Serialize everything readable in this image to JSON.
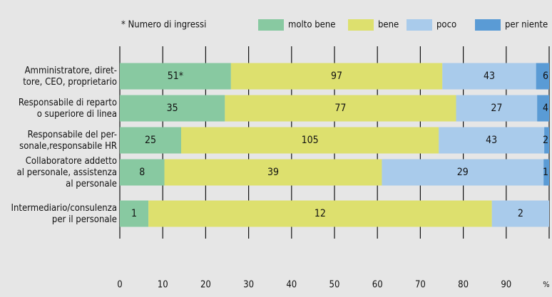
{
  "chart_data": {
    "type": "bar100h",
    "note": "* Numero di ingressi",
    "categories": [
      "Amministratore, diret-\ntore, CEO, proprietario",
      "Responsabile di reparto\no superiore di linea",
      "Responsabile del per-\nsonale,responsabile HR",
      "Collaboratore addetto\nal personale, assistenza\nal personale",
      "Intermediario/consulenza\nper il personale"
    ],
    "series": [
      {
        "name": "molto bene",
        "color": "#88c9a1",
        "values": [
          51,
          35,
          25,
          8,
          1
        ],
        "value_labels": [
          "51*",
          "35",
          "25",
          "8",
          "1"
        ]
      },
      {
        "name": "bene",
        "color": "#dde06e",
        "values": [
          97,
          77,
          105,
          39,
          12
        ]
      },
      {
        "name": "poco",
        "color": "#a9cbeb",
        "values": [
          43,
          27,
          43,
          29,
          2
        ]
      },
      {
        "name": "per niente",
        "color": "#5a9bd5",
        "values": [
          6,
          4,
          2,
          1,
          0
        ]
      }
    ],
    "xlim": [
      0,
      100
    ],
    "xticks": [
      0,
      10,
      20,
      30,
      40,
      50,
      60,
      70,
      80,
      90,
      {
        "value": 100,
        "label": "%"
      }
    ]
  }
}
